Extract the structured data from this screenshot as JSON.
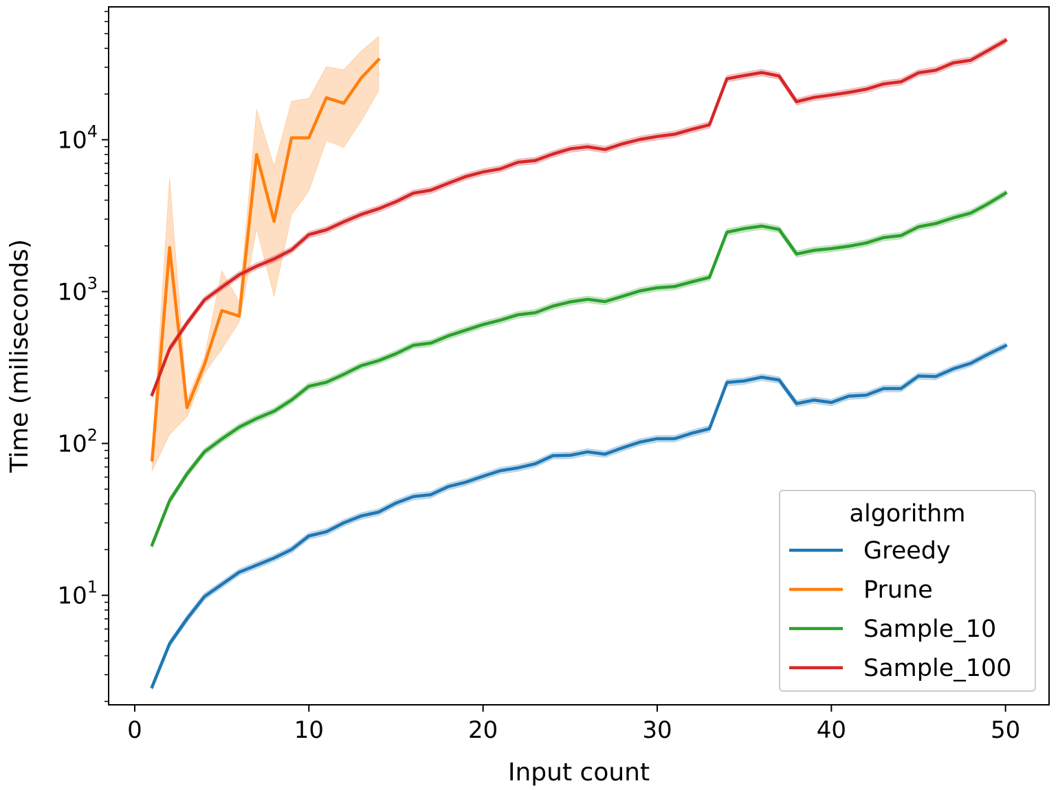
{
  "chart_data": {
    "type": "line",
    "xlabel": "Input count",
    "ylabel": "Time (miliseconds)",
    "yscale": "log",
    "xlim": [
      -1.5,
      52.5
    ],
    "ylim": [
      1.9,
      75000
    ],
    "xticks": [
      0,
      10,
      20,
      30,
      40,
      50
    ],
    "xtick_labels": [
      "0",
      "10",
      "20",
      "30",
      "40",
      "50"
    ],
    "yticks": [
      10,
      100,
      1000,
      10000
    ],
    "ytick_labels": [
      {
        "base": "10",
        "exp": "1"
      },
      {
        "base": "10",
        "exp": "2"
      },
      {
        "base": "10",
        "exp": "3"
      },
      {
        "base": "10",
        "exp": "4"
      }
    ],
    "grid": false,
    "legend": {
      "title": "algorithm",
      "placement": "lower-right"
    },
    "series": [
      {
        "name": "Greedy",
        "color": "#1f77b4",
        "x": [
          1,
          2,
          3,
          4,
          5,
          6,
          7,
          8,
          9,
          10,
          11,
          12,
          13,
          14,
          15,
          16,
          17,
          18,
          19,
          20,
          21,
          22,
          23,
          24,
          25,
          26,
          27,
          28,
          29,
          30,
          31,
          32,
          33,
          34,
          35,
          36,
          37,
          38,
          39,
          40,
          41,
          42,
          43,
          44,
          45,
          46,
          47,
          48,
          49,
          50
        ],
        "values": [
          2.5,
          4.8,
          7,
          9.8,
          11.8,
          14.2,
          15.8,
          17.6,
          20,
          24.6,
          26.2,
          30,
          33.3,
          35.3,
          40.5,
          44.7,
          46,
          52,
          55.5,
          60.8,
          66.2,
          69,
          73.5,
          83,
          83.5,
          88,
          85,
          93.5,
          102,
          107.5,
          107.5,
          117,
          125,
          252,
          258,
          273,
          262,
          183,
          193,
          186,
          205,
          208,
          230,
          230,
          278,
          276,
          310,
          337,
          387,
          440
        ],
        "band_rel": 0.05
      },
      {
        "name": "Prune",
        "color": "#ff7f0e",
        "x": [
          1,
          2,
          3,
          4,
          5,
          6,
          7,
          8,
          9,
          10,
          11,
          12,
          13,
          14
        ],
        "values": [
          78,
          1950,
          172,
          330,
          750,
          690,
          8000,
          2900,
          10300,
          10300,
          18900,
          17400,
          25500,
          33700
        ],
        "lower": [
          66,
          115,
          150,
          290,
          420,
          630,
          2600,
          930,
          3200,
          4600,
          9900,
          8900,
          13300,
          21000
        ],
        "upper": [
          92,
          5600,
          195,
          370,
          1370,
          860,
          15800,
          6700,
          17900,
          18700,
          30200,
          28900,
          38300,
          47900
        ]
      },
      {
        "name": "Sample_10",
        "color": "#2ca02c",
        "x": [
          1,
          2,
          3,
          4,
          5,
          6,
          7,
          8,
          9,
          10,
          11,
          12,
          13,
          14,
          15,
          16,
          17,
          18,
          19,
          20,
          21,
          22,
          23,
          24,
          25,
          26,
          27,
          28,
          29,
          30,
          31,
          32,
          33,
          34,
          35,
          36,
          37,
          38,
          39,
          40,
          41,
          42,
          43,
          44,
          45,
          46,
          47,
          48,
          49,
          50
        ],
        "values": [
          21.5,
          42,
          63,
          88,
          107,
          128,
          146,
          163,
          193,
          238,
          253,
          285,
          325,
          351,
          390,
          443,
          458,
          511,
          557,
          607,
          649,
          704,
          726,
          802,
          855,
          890,
          860,
          930,
          1010,
          1060,
          1080,
          1160,
          1240,
          2460,
          2600,
          2700,
          2570,
          1770,
          1870,
          1920,
          1990,
          2090,
          2270,
          2340,
          2670,
          2810,
          3060,
          3290,
          3790,
          4450
        ],
        "band_rel": 0.05
      },
      {
        "name": "Sample_100",
        "color": "#d62728",
        "x": [
          1,
          2,
          3,
          4,
          5,
          6,
          7,
          8,
          9,
          10,
          11,
          12,
          13,
          14,
          15,
          16,
          17,
          18,
          19,
          20,
          21,
          22,
          23,
          24,
          25,
          26,
          27,
          28,
          29,
          30,
          31,
          32,
          33,
          34,
          35,
          36,
          37,
          38,
          39,
          40,
          41,
          42,
          43,
          44,
          45,
          46,
          47,
          48,
          49,
          50
        ],
        "values": [
          210,
          420,
          620,
          880,
          1070,
          1290,
          1470,
          1640,
          1880,
          2370,
          2550,
          2880,
          3220,
          3510,
          3910,
          4450,
          4650,
          5170,
          5720,
          6140,
          6430,
          7110,
          7300,
          8050,
          8710,
          8990,
          8620,
          9400,
          10050,
          10500,
          10870,
          11720,
          12540,
          25200,
          26500,
          27700,
          26300,
          17800,
          19000,
          19700,
          20500,
          21500,
          23300,
          24100,
          27600,
          28700,
          32100,
          33400,
          38700,
          45000
        ],
        "band_rel": 0.05
      }
    ]
  }
}
